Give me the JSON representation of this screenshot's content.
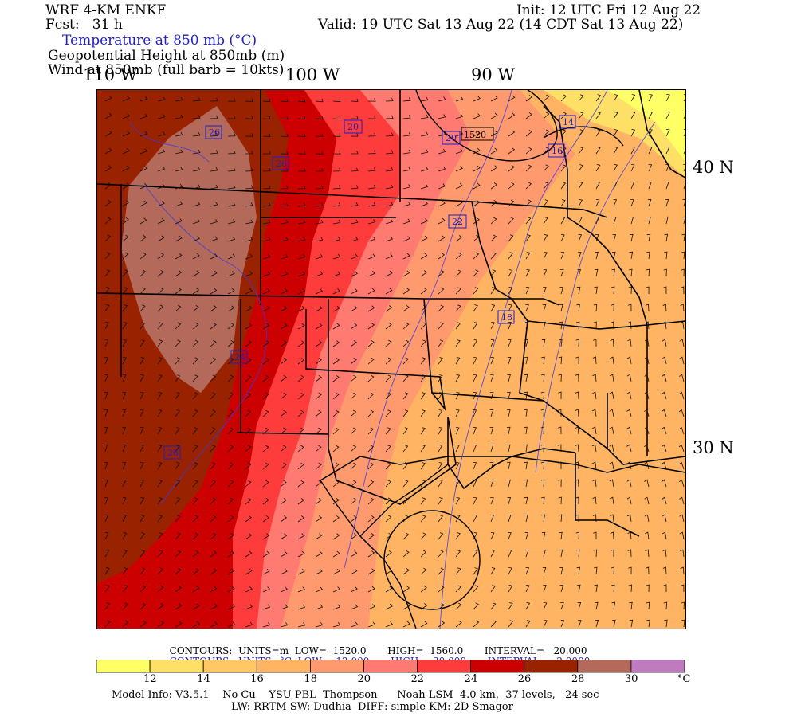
{
  "header": {
    "model": "WRF 4-KM ENKF",
    "forecast": "Fcst:   31 h",
    "init": "Init: 12 UTC Fri 12 Aug 22",
    "valid": "Valid: 19 UTC Sat 13 Aug 22 (14 CDT Sat 13 Aug 22)",
    "field1": "Temperature at 850 mb (°C)",
    "field2": "Geopotential Height at 850mb (m)",
    "field3": "Wind at 850mb (full barb = 10kts)"
  },
  "longitude_labels": [
    "110 W",
    "100 W",
    "90 W"
  ],
  "latitude_labels": [
    "40 N",
    "30 N"
  ],
  "contour_labels": [
    "20",
    "20",
    "20",
    "1520",
    "14",
    "16",
    "26",
    "26",
    "22",
    "18",
    "24",
    "26"
  ],
  "contour_info": {
    "height": {
      "label": "CONTOURS:",
      "units": "UNITS=m",
      "low_label": "LOW=",
      "low": "1520.0",
      "high_label": "HIGH=",
      "high": "1560.0",
      "interval_label": "INTERVAL=",
      "interval": "20.000"
    },
    "temperature": {
      "label": "CONTOURS:",
      "units": "UNITS=°C",
      "low_label": "LOW=",
      "low": "12.000",
      "high_label": "HIGH=",
      "high": "30.000",
      "interval_label": "INTERVAL=",
      "interval": "2.0000"
    }
  },
  "colorbar": {
    "colors": [
      "#ffff66",
      "#ffe066",
      "#ffc864",
      "#ffb464",
      "#ff9a6e",
      "#ff7a70",
      "#ff3c3c",
      "#cc0000",
      "#992200",
      "#b46a5a",
      "#c07ac0"
    ],
    "tick_labels": [
      "12",
      "14",
      "16",
      "18",
      "20",
      "22",
      "24",
      "26",
      "28",
      "30"
    ],
    "unit": "°C"
  },
  "footer": {
    "line1": "Model Info: V3.5.1    No Cu    YSU PBL  Thompson      Noah LSM  4.0 km,  37 levels,   24 sec",
    "line2": "LW: RRTM SW: Dudhia  DIFF: simple KM: 2D Smagor"
  }
}
